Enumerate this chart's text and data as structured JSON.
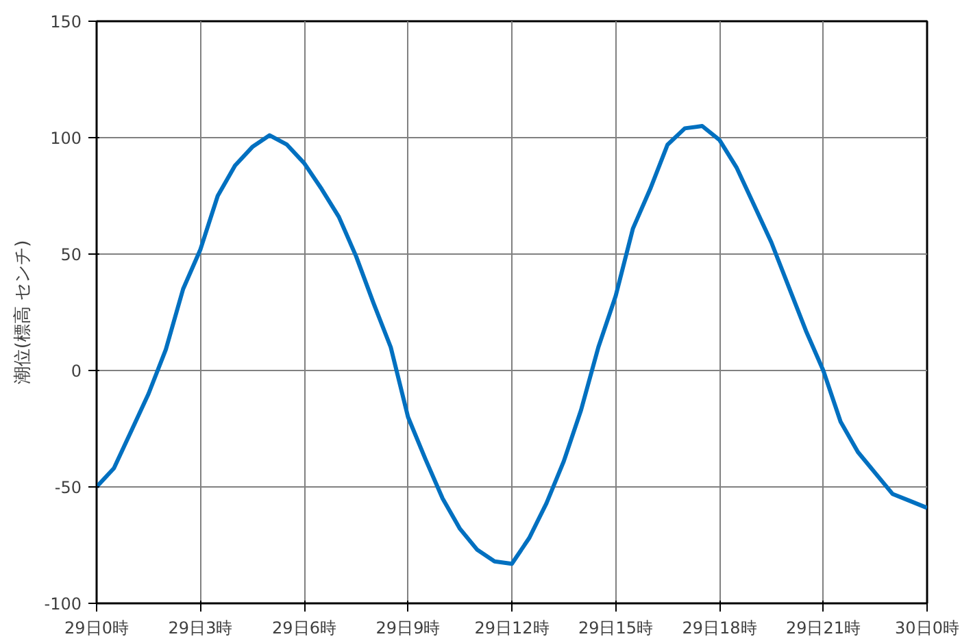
{
  "chart_data": {
    "type": "line",
    "ylabel": "潮位(標高 センチ)",
    "categories": [
      "29日0時",
      null,
      null,
      null,
      null,
      null,
      "29日3時",
      null,
      null,
      null,
      null,
      null,
      "29日6時",
      null,
      null,
      null,
      null,
      null,
      "29日9時",
      null,
      null,
      null,
      null,
      null,
      "29日12時",
      null,
      null,
      null,
      null,
      null,
      "29日15時",
      null,
      null,
      null,
      null,
      null,
      "29日18時",
      null,
      null,
      null,
      null,
      null,
      "29日21時",
      null,
      null,
      null,
      null,
      null,
      "30日0時"
    ],
    "series": [
      {
        "color": "#0070c0",
        "values": [
          -50,
          -42,
          -26,
          -10,
          9,
          35,
          52,
          75,
          88,
          96,
          101,
          97,
          89,
          78,
          66,
          49,
          29,
          10,
          -20,
          -38,
          -55,
          -68,
          -77,
          -82,
          -83,
          -72,
          -57,
          -39,
          -17,
          10,
          32,
          61,
          78,
          97,
          104,
          105,
          99,
          87,
          71,
          55,
          36,
          17,
          0,
          -22,
          -35,
          -44,
          -53,
          -56,
          -59
        ]
      }
    ],
    "ylim": [
      -100,
      150
    ],
    "yticks": [
      -100,
      -50,
      0,
      50,
      100,
      150
    ],
    "grid": true,
    "line_style": "solid"
  }
}
